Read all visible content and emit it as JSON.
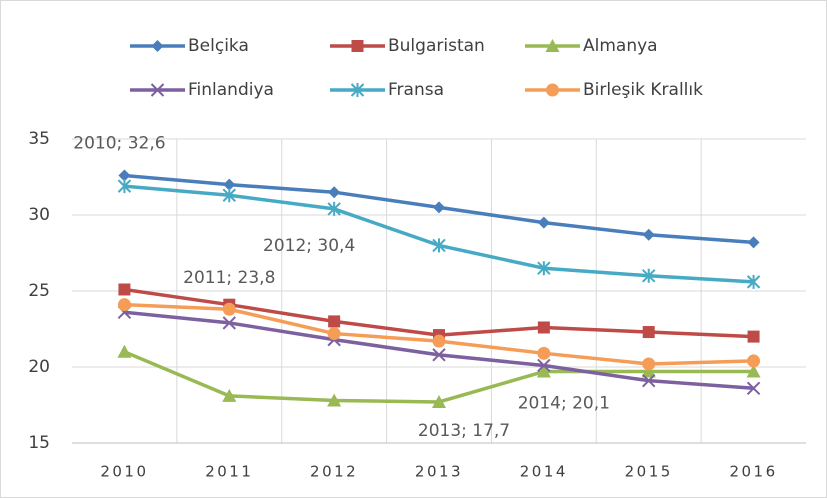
{
  "chart_data": {
    "type": "line",
    "categories": [
      "2010",
      "2011",
      "2012",
      "2013",
      "2014",
      "2015",
      "2016"
    ],
    "series": [
      {
        "name": "Belçika",
        "color": "#4a7ebb",
        "marker": "diamond",
        "values": [
          32.6,
          32.0,
          31.5,
          30.5,
          29.5,
          28.7,
          28.2
        ],
        "value_labels": [
          "2010; 32,6",
          null,
          null,
          null,
          null,
          null,
          null
        ]
      },
      {
        "name": "Bulgaristan",
        "color": "#be4b48",
        "marker": "square",
        "values": [
          25.1,
          24.1,
          23.0,
          22.1,
          22.6,
          22.3,
          22.0
        ]
      },
      {
        "name": "Almanya",
        "color": "#98b954",
        "marker": "triangle",
        "values": [
          21.0,
          18.1,
          17.8,
          17.7,
          19.7,
          19.7,
          19.7
        ],
        "value_labels": [
          null,
          null,
          null,
          "2013; 17,7",
          null,
          null,
          null
        ]
      },
      {
        "name": "Finlandiya",
        "color": "#7d60a0",
        "marker": "x",
        "values": [
          23.6,
          22.9,
          21.8,
          20.8,
          20.1,
          19.1,
          18.6
        ],
        "value_labels": [
          null,
          null,
          null,
          null,
          "2014; 20,1",
          null,
          null
        ]
      },
      {
        "name": "Fransa",
        "color": "#46aac5",
        "marker": "asterisk",
        "values": [
          31.9,
          31.3,
          30.4,
          28.0,
          26.5,
          26.0,
          25.6
        ],
        "value_labels": [
          null,
          null,
          "2012; 30,4",
          null,
          null,
          null,
          null
        ]
      },
      {
        "name": "Birleşik Krallık",
        "color": "#f59d56",
        "marker": "circle",
        "values": [
          24.1,
          23.8,
          22.2,
          21.7,
          20.9,
          20.2,
          20.4
        ],
        "value_labels": [
          null,
          "2011; 23,8",
          null,
          null,
          null,
          null,
          null
        ]
      }
    ],
    "ylim": [
      15,
      35
    ],
    "yticks": [
      15,
      20,
      25,
      30,
      35
    ],
    "grid": true,
    "legend": "top"
  }
}
